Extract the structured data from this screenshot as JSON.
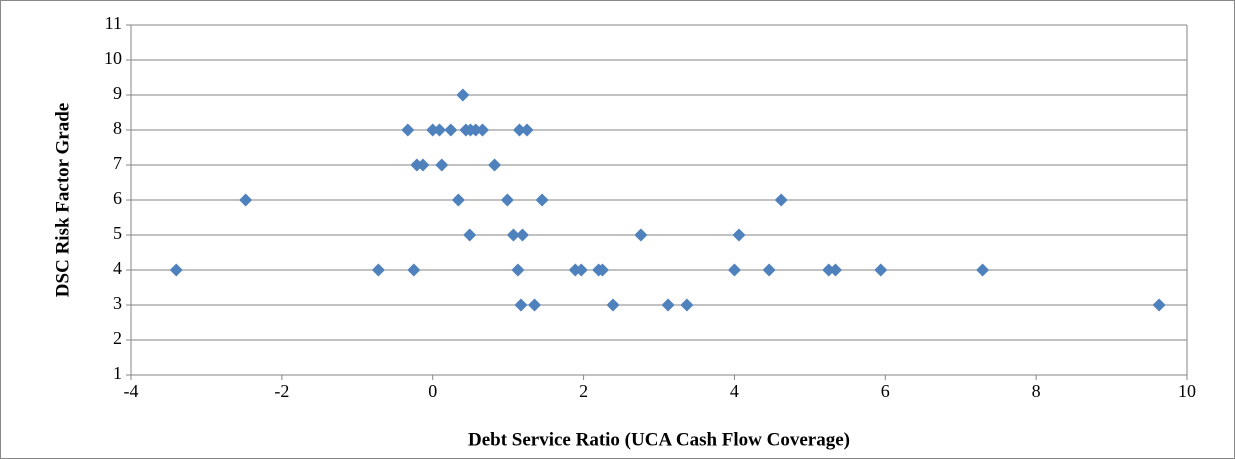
{
  "chart_data": {
    "type": "scatter",
    "x_label": "Debt Service Ratio (UCA Cash Flow Coverage)",
    "y_label": "DSC Risk Factor Grade",
    "color": "#4f81bd",
    "x": [
      0.4,
      -0.33,
      0.0,
      0.09,
      0.24,
      0.44,
      0.5,
      0.57,
      0.66,
      1.15,
      1.25,
      -0.21,
      -0.13,
      0.12,
      0.82,
      -2.48,
      0.34,
      0.99,
      1.45,
      4.62,
      0.49,
      1.07,
      1.19,
      2.76,
      4.06,
      -3.4,
      -0.72,
      -0.25,
      1.13,
      1.89,
      1.97,
      2.2,
      2.25,
      4.0,
      4.46,
      5.25,
      5.34,
      5.94,
      7.29,
      1.17,
      1.35,
      2.39,
      3.12,
      3.37,
      9.63
    ],
    "values": [
      9,
      8,
      8,
      8,
      8,
      8,
      8,
      8,
      8,
      8,
      8,
      7,
      7,
      7,
      7,
      6,
      6,
      6,
      6,
      6,
      5,
      5,
      5,
      5,
      5,
      4,
      4,
      4,
      4,
      4,
      4,
      4,
      4,
      4,
      4,
      4,
      4,
      4,
      4,
      3,
      3,
      3,
      3,
      3,
      3
    ],
    "xlim": [
      -4,
      10
    ],
    "xticks": [
      -4,
      -2,
      0,
      2,
      4,
      6,
      8,
      10
    ],
    "ylim": [
      1,
      11
    ],
    "yticks": [
      1,
      2,
      3,
      4,
      5,
      6,
      7,
      8,
      9,
      10,
      11
    ],
    "grid": true
  }
}
